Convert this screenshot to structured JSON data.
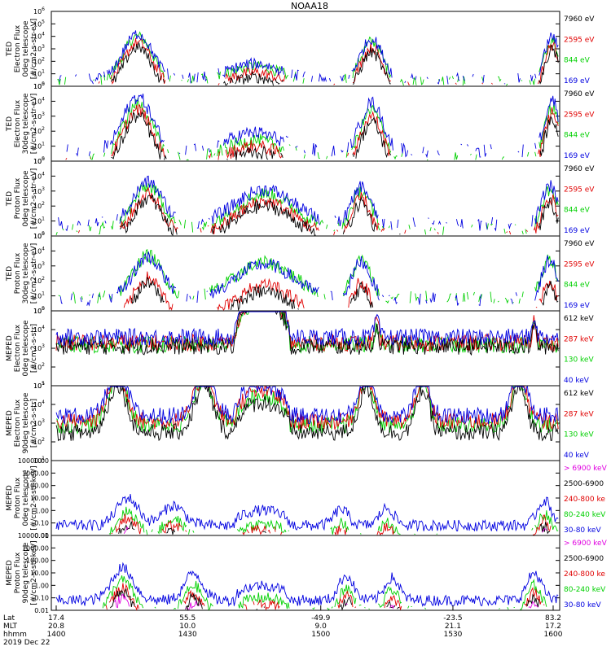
{
  "title": "NOAA18",
  "colors": {
    "black": "#000000",
    "red": "#e00000",
    "green": "#00d000",
    "blue": "#0000e0",
    "magenta": "#e000e0"
  },
  "chart_data": [
    {
      "type": "line",
      "scale": "log",
      "ylabel": [
        "TED",
        "Electron Flux",
        "0deg telescope",
        "[#/cm2-s-str-eV]"
      ],
      "ylim": [
        1,
        1000000
      ],
      "yticks": [
        "10",
        "10",
        "10",
        "10",
        "10",
        "10",
        "10"
      ],
      "yexp": [
        "0",
        "1",
        "2",
        "3",
        "4",
        "5",
        "6"
      ],
      "series": [
        {
          "name": "7960 eV",
          "color": "black"
        },
        {
          "name": "2595 eV",
          "color": "red"
        },
        {
          "name": "844 eV",
          "color": "green"
        },
        {
          "name": "169 eV",
          "color": "blue"
        }
      ]
    },
    {
      "type": "line",
      "scale": "log",
      "ylabel": [
        "TED",
        "Electron Flux",
        "30deg telescope",
        "[#/cm2-s-str-eV]"
      ],
      "ylim": [
        1,
        100000
      ],
      "yticks": [
        "10",
        "10",
        "10",
        "10",
        "10",
        "10"
      ],
      "yexp": [
        "0",
        "1",
        "2",
        "3",
        "4",
        "5"
      ],
      "series": [
        {
          "name": "7960 eV",
          "color": "black"
        },
        {
          "name": "2595 eV",
          "color": "red"
        },
        {
          "name": "844 eV",
          "color": "green"
        },
        {
          "name": "169 eV",
          "color": "blue"
        }
      ]
    },
    {
      "type": "line",
      "scale": "log",
      "ylabel": [
        "TED",
        "Proton Flux",
        "0deg telescope",
        "[#/cm2-s-str-eV]"
      ],
      "ylim": [
        1,
        100000
      ],
      "yticks": [
        "10",
        "10",
        "10",
        "10",
        "10",
        "10"
      ],
      "yexp": [
        "0",
        "1",
        "2",
        "3",
        "4",
        "5"
      ],
      "series": [
        {
          "name": "7960 eV",
          "color": "black"
        },
        {
          "name": "2595 eV",
          "color": "red"
        },
        {
          "name": "844 eV",
          "color": "green"
        },
        {
          "name": "169 eV",
          "color": "blue"
        }
      ]
    },
    {
      "type": "line",
      "scale": "log",
      "ylabel": [
        "TED",
        "Proton Flux",
        "30deg telescope",
        "[#/cm2-s-str-eV]"
      ],
      "ylim": [
        1,
        100000
      ],
      "yticks": [
        "10",
        "10",
        "10",
        "10",
        "10",
        "10"
      ],
      "yexp": [
        "0",
        "1",
        "2",
        "3",
        "4",
        "5"
      ],
      "series": [
        {
          "name": "7960 eV",
          "color": "black"
        },
        {
          "name": "2595 eV",
          "color": "red"
        },
        {
          "name": "844 eV",
          "color": "green"
        },
        {
          "name": "169 eV",
          "color": "blue"
        }
      ]
    },
    {
      "type": "line",
      "scale": "log",
      "ylabel": [
        "MEPED",
        "Electron Flux",
        "0deg telescope",
        "[#/cm2-s-str]"
      ],
      "ylim": [
        10,
        100000
      ],
      "yticks": [
        "10",
        "10",
        "10",
        "10",
        "10"
      ],
      "yexp": [
        "1",
        "2",
        "3",
        "4",
        "5"
      ],
      "series": [
        {
          "name": "612 keV",
          "color": "black"
        },
        {
          "name": "287 keV",
          "color": "red"
        },
        {
          "name": "130 keV",
          "color": "green"
        },
        {
          "name": "40 keV",
          "color": "blue"
        }
      ]
    },
    {
      "type": "line",
      "scale": "log",
      "ylabel": [
        "MEPED",
        "Electron Flux",
        "90deg telescope",
        "[#/cm2-s-str]"
      ],
      "ylim": [
        10,
        100000
      ],
      "yticks": [
        "10",
        "10",
        "10",
        "10",
        "10"
      ],
      "yexp": [
        "1",
        "2",
        "3",
        "4",
        "5"
      ],
      "series": [
        {
          "name": "612 keV",
          "color": "black"
        },
        {
          "name": "287 keV",
          "color": "red"
        },
        {
          "name": "130 keV",
          "color": "green"
        },
        {
          "name": "40 keV",
          "color": "blue"
        }
      ]
    },
    {
      "type": "line",
      "scale": "log",
      "ylabel": [
        "MEPED",
        "Proton Flux",
        "0deg telescope",
        "[#/cm2-s-str-keV]"
      ],
      "ylim": [
        0.01,
        10000
      ],
      "yticks": [
        "10000.00",
        "1000.00",
        "100.00",
        "10.00",
        "1.00",
        "0.10",
        "0.01"
      ],
      "yexp": [
        "",
        "",
        "",
        "",
        "",
        "",
        ""
      ],
      "series": [
        {
          "name": "> 6900 keV",
          "color": "magenta"
        },
        {
          "name": "2500-6900",
          "color": "black"
        },
        {
          "name": "240-800 ke",
          "color": "red"
        },
        {
          "name": "80-240 keV",
          "color": "green"
        },
        {
          "name": "30-80 keV",
          "color": "blue"
        }
      ]
    },
    {
      "type": "line",
      "scale": "log",
      "ylabel": [
        "MEPED",
        "Proton Flux",
        "90deg telescope",
        "[#/cm2-s-str-keV]"
      ],
      "ylim": [
        0.01,
        10000
      ],
      "yticks": [
        "10000.00",
        "1000.00",
        "100.00",
        "10.00",
        "1.00",
        "0.10",
        "0.01"
      ],
      "yexp": [
        "",
        "",
        "",
        "",
        "",
        "",
        ""
      ],
      "series": [
        {
          "name": "> 6900 keV",
          "color": "magenta"
        },
        {
          "name": "2500-6900",
          "color": "black"
        },
        {
          "name": "240-800 ke",
          "color": "red"
        },
        {
          "name": "80-240 keV",
          "color": "green"
        },
        {
          "name": "30-80 keV",
          "color": "blue"
        }
      ]
    }
  ],
  "xaxis": {
    "rows": [
      {
        "label": "Lat",
        "values": [
          "17.4",
          "55.5",
          "-49.9",
          "-23.5",
          "83.2"
        ]
      },
      {
        "label": "MLT",
        "values": [
          "20.8",
          "10.0",
          "9.0",
          "21.1",
          "17.2"
        ]
      },
      {
        "label": "hhmm",
        "values": [
          "1400",
          "1430",
          "1500",
          "1530",
          "1600"
        ]
      }
    ],
    "date": "2019 Dec 22"
  }
}
